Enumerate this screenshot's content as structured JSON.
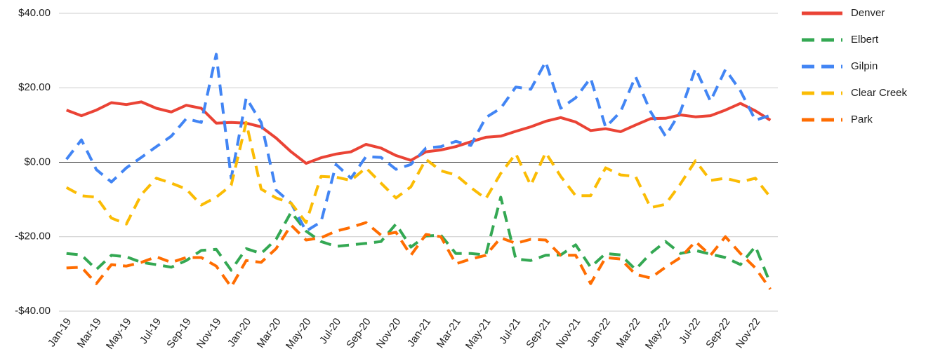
{
  "chart_data": {
    "type": "line",
    "categories": [
      "Jan-19",
      null,
      "Mar-19",
      null,
      "May-19",
      null,
      "Jul-19",
      null,
      "Sep-19",
      null,
      "Nov-19",
      null,
      "Jan-20",
      null,
      "Mar-20",
      null,
      "May-20",
      null,
      "Jul-20",
      null,
      "Sep-20",
      null,
      "Nov-20",
      null,
      "Jan-21",
      null,
      "Mar-21",
      null,
      "May-21",
      null,
      "Jul-21",
      null,
      "Sep-21",
      null,
      "Nov-21",
      null,
      "Jan-22",
      null,
      "Mar-22",
      null,
      "May-22",
      null,
      "Jul-22",
      null,
      "Sep-22",
      null,
      "Nov-22",
      null
    ],
    "ylim": [
      -40,
      40
    ],
    "yticks": [
      {
        "value": -40,
        "label": "-$40.00"
      },
      {
        "value": -20,
        "label": "-$20.00"
      },
      {
        "value": 0,
        "label": "$0.00"
      },
      {
        "value": 20,
        "label": "$20.00"
      },
      {
        "value": 40,
        "label": "$40.00"
      }
    ],
    "grid": true,
    "legend": "right",
    "series": [
      {
        "name": "Denver",
        "color": "#ea4335",
        "dashed": false,
        "values": [
          14,
          12.5,
          14,
          16,
          15.5,
          16.2,
          14.5,
          13.5,
          15.3,
          14.5,
          10.5,
          10.7,
          10.5,
          9.5,
          6.5,
          2.8,
          -0.3,
          1.2,
          2.2,
          2.8,
          4.8,
          3.8,
          1.8,
          0.5,
          2.8,
          3.3,
          4.2,
          5.5,
          6.7,
          7,
          8.3,
          9.5,
          11,
          12,
          10.8,
          8.5,
          9,
          8.2,
          10,
          11.7,
          11.8,
          12.7,
          12.2,
          12.5,
          14,
          15.8,
          13.8,
          11.3
        ]
      },
      {
        "name": "Elbert",
        "color": "#34a853",
        "dashed": true,
        "values": [
          -24.5,
          -24.9,
          -28.8,
          -25,
          -25.4,
          -26.9,
          -27.5,
          -28.2,
          -26.4,
          -23.7,
          -23.4,
          -29,
          -23.2,
          -24.5,
          -20.7,
          -13.4,
          -18.5,
          -21.3,
          -22.6,
          -22.2,
          -21.8,
          -21.3,
          -16.6,
          -22.8,
          -19.8,
          -19.6,
          -24.5,
          -24.5,
          -24.9,
          -9.4,
          -26,
          -26.4,
          -25,
          -24.9,
          -22.2,
          -28.2,
          -24.5,
          -24.9,
          -28.8,
          -24.5,
          -21.3,
          -24.5,
          -23.7,
          -24.7,
          -25.6,
          -27.5,
          -22.6,
          -32.6
        ]
      },
      {
        "name": "Gilpin",
        "color": "#4285f4",
        "dashed": true,
        "values": [
          0.8,
          6,
          -2,
          -5.3,
          -1.5,
          1.3,
          4.2,
          7,
          11.7,
          10.7,
          29,
          -4.3,
          17.3,
          10.7,
          -7.5,
          -11,
          -18.5,
          -16,
          -0.6,
          -4.3,
          1.5,
          1.3,
          -1.9,
          -0.6,
          3.8,
          4.2,
          5.6,
          4.5,
          12,
          14.5,
          20.2,
          19.6,
          27,
          14.5,
          17.3,
          22.6,
          9.4,
          13.6,
          23,
          13.6,
          7,
          13.6,
          25.2,
          16.4,
          24.9,
          19.2,
          11.3,
          12.6
        ]
      },
      {
        "name": "Clear Creek",
        "color": "#fbbc04",
        "dashed": true,
        "values": [
          -6.8,
          -9,
          -9.4,
          -15,
          -16.6,
          -8.7,
          -4.3,
          -5.6,
          -7.2,
          -11.5,
          -9.4,
          -6.2,
          10.7,
          -7.2,
          -9.6,
          -11,
          -16.2,
          -3.8,
          -4,
          -4.9,
          -1.5,
          -5.6,
          -9.6,
          -6.6,
          0.8,
          -2.3,
          -3.4,
          -6.8,
          -9.8,
          -3,
          2.3,
          -6.2,
          2.6,
          -3.8,
          -9,
          -9,
          -1.5,
          -3.4,
          -3.8,
          -12.2,
          -11.3,
          -5.8,
          0.4,
          -4.9,
          -4.3,
          -5.3,
          -4.3,
          -9.4
        ]
      },
      {
        "name": "Park",
        "color": "#ff6d01",
        "dashed": true,
        "values": [
          -28.4,
          -28.2,
          -32.6,
          -27.5,
          -27.9,
          -26.9,
          -25.4,
          -26.9,
          -25.6,
          -25.6,
          -27.9,
          -33.5,
          -26.4,
          -26.9,
          -23.2,
          -16.9,
          -20.9,
          -20.3,
          -18.5,
          -17.5,
          -16.2,
          -19.6,
          -18.8,
          -25,
          -19.4,
          -20,
          -27.3,
          -26,
          -25,
          -20.3,
          -21.8,
          -20.7,
          -20.9,
          -25,
          -25,
          -32.6,
          -25.6,
          -26,
          -30.1,
          -31.1,
          -28.2,
          -25.6,
          -21.3,
          -25,
          -20,
          -24.5,
          -28.4,
          -34.1
        ]
      }
    ]
  }
}
